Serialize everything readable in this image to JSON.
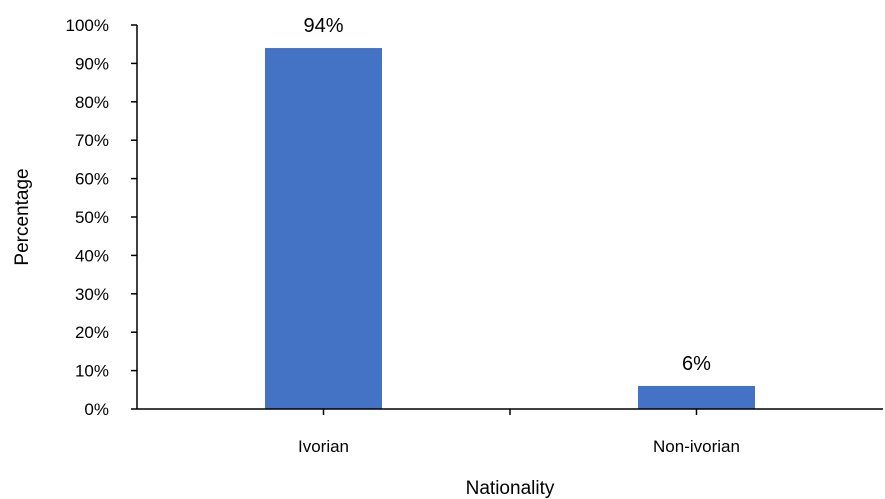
{
  "chart_data": {
    "type": "bar",
    "categories": [
      "Ivorian",
      "Non-ivorian"
    ],
    "values": [
      94,
      6
    ],
    "data_labels": [
      "94%",
      "6%"
    ],
    "title": "",
    "xlabel": "Nationality",
    "ylabel": "Percentage",
    "ylim": [
      0,
      100
    ],
    "yticks": [
      0,
      10,
      20,
      30,
      40,
      50,
      60,
      70,
      80,
      90,
      100
    ],
    "ytick_labels": [
      "0%",
      "10%",
      "20%",
      "30%",
      "40%",
      "50%",
      "60%",
      "70%",
      "80%",
      "90%",
      "100%"
    ],
    "grid": false,
    "legend": "none",
    "bar_color": "#4472C4"
  }
}
